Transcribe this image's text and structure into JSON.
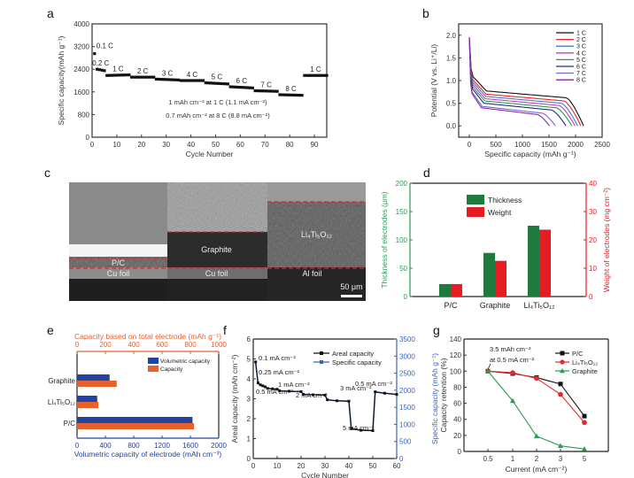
{
  "figure": {
    "panel_labels": [
      "a",
      "b",
      "c",
      "d",
      "e",
      "f",
      "g"
    ]
  },
  "chart_data": [
    {
      "id": "a",
      "type": "scatter",
      "title": "",
      "xlabel": "Cycle Number",
      "ylabel": "Specific capacity(mAh g⁻¹)",
      "xlim": [
        0,
        95
      ],
      "ylim": [
        0,
        4000
      ],
      "xticks": [
        0,
        10,
        20,
        30,
        40,
        50,
        60,
        70,
        80,
        90
      ],
      "yticks": [
        0,
        800,
        1600,
        2400,
        3200,
        4000
      ],
      "segments": [
        {
          "rate": "0.1 C",
          "x": [
            1,
            1
          ],
          "y": [
            2950,
            2950
          ]
        },
        {
          "rate": "0.2 C",
          "x": [
            2,
            5
          ],
          "y": [
            2400,
            2350
          ]
        },
        {
          "rate": "1 C",
          "x": [
            6,
            15
          ],
          "y": [
            2180,
            2200
          ]
        },
        {
          "rate": "2 C",
          "x": [
            16,
            25
          ],
          "y": [
            2120,
            2120
          ]
        },
        {
          "rate": "3 C",
          "x": [
            26,
            35
          ],
          "y": [
            2050,
            2020
          ]
        },
        {
          "rate": "4 C",
          "x": [
            36,
            45
          ],
          "y": [
            2000,
            2000
          ]
        },
        {
          "rate": "5 C",
          "x": [
            46,
            55
          ],
          "y": [
            1920,
            1880
          ]
        },
        {
          "rate": "6 C",
          "x": [
            56,
            65
          ],
          "y": [
            1780,
            1740
          ]
        },
        {
          "rate": "7 C",
          "x": [
            66,
            75
          ],
          "y": [
            1640,
            1620
          ]
        },
        {
          "rate": "8 C",
          "x": [
            76,
            85
          ],
          "y": [
            1500,
            1480
          ]
        },
        {
          "rate": "1 C",
          "x": [
            86,
            95
          ],
          "y": [
            2180,
            2180
          ]
        }
      ],
      "annotations": [
        "1 mAh cm⁻² at 1 C (1.1 mA cm⁻²)",
        "0.7 mAh cm⁻² at 8 C (8.8 mA cm⁻²)"
      ]
    },
    {
      "id": "b",
      "type": "line",
      "xlabel": "Specific capacity (mAh g⁻¹)",
      "ylabel": "Potential (V vs. Li⁺/Li)",
      "xlim": [
        -200,
        2500
      ],
      "ylim": [
        -0.25,
        2.25
      ],
      "xticks": [
        0,
        500,
        1000,
        1500,
        2000,
        2500
      ],
      "yticks": [
        0.0,
        0.5,
        1.0,
        1.5,
        2.0
      ],
      "legend_position": "top-right",
      "series": [
        {
          "name": "1 C",
          "color": "#111111",
          "end_capacity": 2150,
          "plateau": 0.62
        },
        {
          "name": "2 C",
          "color": "#e8262b",
          "end_capacity": 2100,
          "plateau": 0.55
        },
        {
          "name": "3 C",
          "color": "#4a78c8",
          "end_capacity": 2040,
          "plateau": 0.5
        },
        {
          "name": "4 C",
          "color": "#c040c0",
          "end_capacity": 1990,
          "plateau": 0.45
        },
        {
          "name": "5 C",
          "color": "#2a9a52",
          "end_capacity": 1930,
          "plateau": 0.4
        },
        {
          "name": "6 C",
          "color": "#1f2f80",
          "end_capacity": 1820,
          "plateau": 0.35
        },
        {
          "name": "7 C",
          "color": "#7a6ad0",
          "end_capacity": 1620,
          "plateau": 0.28
        },
        {
          "name": "8 C",
          "color": "#8a2aa0",
          "end_capacity": 1510,
          "plateau": 0.25
        }
      ]
    },
    {
      "id": "d",
      "type": "bar",
      "categories": [
        "P/C",
        "Graphite",
        "Li₄Ti₅O₁₂"
      ],
      "ylabel": "Thickness of electrodes (μm)",
      "ylabel_right": "Weight of electrodes (mg cm⁻²)",
      "ylim": [
        0,
        200
      ],
      "ylim_right": [
        0,
        40
      ],
      "yticks": [
        0,
        50,
        100,
        150,
        200
      ],
      "yticks_right": [
        0,
        10,
        20,
        30,
        40
      ],
      "legend_position": "top-center",
      "series": [
        {
          "name": "Thickness",
          "color": "#1e7a3c",
          "axis": "left",
          "values": [
            22,
            77,
            125
          ]
        },
        {
          "name": "Weight",
          "color": "#e51c23",
          "axis": "right",
          "values": [
            4.4,
            12.6,
            23.6
          ]
        }
      ]
    },
    {
      "id": "e",
      "type": "bar",
      "orientation": "horizontal",
      "categories": [
        "Graphite",
        "Li₄Ti₅O₁₂",
        "P/C"
      ],
      "xlabel": "Volumetric capacity of electrode (mAh cm⁻³)",
      "xlabel_top": "Capacity based on total electrode (mAh g⁻¹)",
      "xlim": [
        0,
        2000
      ],
      "xlim_top": [
        0,
        1000
      ],
      "xticks": [
        0,
        400,
        800,
        1200,
        1600,
        2000
      ],
      "xticks_top": [
        0,
        200,
        400,
        600,
        800,
        1000
      ],
      "legend_position": "top-right",
      "series": [
        {
          "name": "Volumetric capacity",
          "color": "#2343a0",
          "axis": "bottom",
          "values": [
            460,
            285,
            1630
          ]
        },
        {
          "name": "Capacity",
          "color": "#e8602a",
          "axis": "top",
          "values": [
            280,
            150,
            825
          ]
        }
      ]
    },
    {
      "id": "f",
      "type": "line",
      "xlabel": "Cycle Number",
      "ylabel": "Areal capacity (mAh cm⁻²)",
      "ylabel_right": "Specific capacity (mAh g⁻¹)",
      "xlim": [
        0,
        60
      ],
      "ylim": [
        0,
        6
      ],
      "ylim_right": [
        0,
        3500
      ],
      "xticks": [
        0,
        10,
        20,
        30,
        40,
        50,
        60
      ],
      "yticks": [
        0,
        1,
        2,
        3,
        4,
        5,
        6
      ],
      "yticks_right": [
        0,
        500,
        1000,
        1500,
        2000,
        2500,
        3000,
        3500
      ],
      "legend_position": "top-right",
      "series": [
        {
          "name": "Areal capacity",
          "color": "#111111",
          "x": [
            1,
            2,
            3,
            4,
            5,
            6,
            8,
            10,
            11,
            15,
            20,
            21,
            25,
            30,
            31,
            35,
            40,
            41,
            45,
            50,
            51,
            55,
            60
          ],
          "y": [
            4.85,
            3.8,
            3.7,
            3.65,
            3.6,
            3.52,
            3.5,
            3.48,
            3.4,
            3.38,
            3.36,
            3.22,
            3.2,
            3.18,
            2.95,
            2.9,
            2.88,
            1.5,
            1.42,
            1.4,
            3.35,
            3.28,
            3.22
          ]
        },
        {
          "name": "Specific capacity",
          "color": "#3a64b8",
          "x": [
            1,
            2,
            3,
            4,
            5,
            6,
            8,
            10,
            11,
            15,
            20,
            21,
            25,
            30,
            31,
            35,
            40,
            41,
            45,
            50,
            51,
            55,
            60
          ],
          "y": [
            2800,
            2200,
            2150,
            2120,
            2100,
            2050,
            2040,
            2030,
            1980,
            1970,
            1960,
            1880,
            1870,
            1860,
            1720,
            1690,
            1680,
            870,
            830,
            820,
            1950,
            1910,
            1880
          ]
        }
      ],
      "annotations": [
        "0.1 mA cm⁻²",
        "0.25 mA cm⁻²",
        "0.5 mA cm⁻²",
        "1 mA cm⁻²",
        "2 mA cm⁻²",
        "3 mA cm⁻²",
        "5 mA cm⁻²",
        "0.5 mA cm⁻²"
      ]
    },
    {
      "id": "g",
      "type": "line",
      "xlabel": "Current (mA cm⁻²)",
      "ylabel": "Capacity retention (%)",
      "categories": [
        "0.5",
        "1",
        "2",
        "3",
        "5"
      ],
      "ylim": [
        0,
        140
      ],
      "yticks": [
        0,
        20,
        40,
        60,
        80,
        100,
        120,
        140
      ],
      "legend_position": "top-right",
      "series": [
        {
          "name": "P/C",
          "color": "#111111",
          "marker": "square",
          "values": [
            100,
            97,
            92,
            84,
            44
          ]
        },
        {
          "name": "Li₄Ti₅O₁₂",
          "color": "#e8262b",
          "marker": "circle",
          "values": [
            100,
            98,
            91,
            71,
            36
          ]
        },
        {
          "name": "Graphite",
          "color": "#2a9a52",
          "marker": "triangle",
          "values": [
            100,
            63,
            19,
            7,
            3
          ]
        }
      ],
      "annotations": [
        "3.5 mAh cm⁻²",
        "at 0.5 mA cm⁻²"
      ]
    }
  ],
  "sem_image": {
    "id": "c",
    "sections": [
      {
        "layer": "P/C",
        "substrate": "Cu foil"
      },
      {
        "layer": "Graphite",
        "substrate": "Cu foil"
      },
      {
        "layer": "Li₄Ti₅O₁₂",
        "substrate": "Al foil"
      }
    ],
    "scale_bar": "50 μm"
  }
}
